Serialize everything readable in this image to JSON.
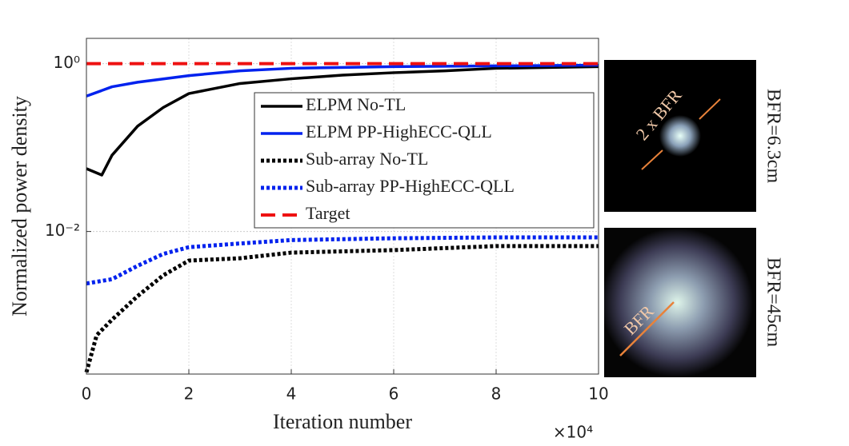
{
  "chart_data": {
    "type": "line",
    "y_label": "Normalized power density",
    "x_label": "Iteration number",
    "x_multiplier": "×10⁴",
    "xlim": [
      0,
      10
    ],
    "xticks": [
      0,
      2,
      4,
      6,
      8,
      10
    ],
    "ylim": [
      0.0002,
      2
    ],
    "yscale": "log",
    "yticks": [
      {
        "value": 0.01,
        "label": "10⁻²"
      },
      {
        "value": 1,
        "label": "10⁰"
      }
    ],
    "grid": true,
    "legend": "upper right",
    "series": [
      {
        "name": "ELPM No-TL",
        "color": "#000000",
        "style": "solid",
        "x": [
          0,
          0.3,
          0.5,
          1,
          1.5,
          2,
          3,
          4,
          5,
          6,
          7,
          8,
          10
        ],
        "values": [
          0.056,
          0.047,
          0.081,
          0.18,
          0.3,
          0.44,
          0.58,
          0.66,
          0.73,
          0.78,
          0.82,
          0.88,
          0.92
        ]
      },
      {
        "name": "ELPM PP-HighECC-QLL",
        "color": "#0022ee",
        "style": "solid",
        "x": [
          0,
          0.5,
          1,
          2,
          3,
          4,
          6,
          8,
          10
        ],
        "values": [
          0.41,
          0.53,
          0.6,
          0.72,
          0.82,
          0.88,
          0.92,
          0.94,
          0.96
        ]
      },
      {
        "name": "Sub-array No-TL",
        "color": "#000000",
        "style": "dotted",
        "x": [
          0,
          0.2,
          0.5,
          1,
          1.5,
          2,
          3,
          4,
          6,
          8,
          10
        ],
        "values": [
          0.00021,
          0.00058,
          0.00089,
          0.0017,
          0.003,
          0.0045,
          0.0048,
          0.0056,
          0.006,
          0.0067,
          0.0067
        ]
      },
      {
        "name": "Sub-array PP-HighECC-QLL",
        "color": "#0022ee",
        "style": "dotted",
        "x": [
          0,
          0.5,
          1,
          1.5,
          2,
          3,
          4,
          6,
          8,
          10
        ],
        "values": [
          0.0024,
          0.0027,
          0.0039,
          0.0054,
          0.0065,
          0.0072,
          0.0079,
          0.0083,
          0.0085,
          0.0085
        ]
      },
      {
        "name": "Target",
        "color": "#ee1111",
        "style": "dashed",
        "x": [
          0,
          10
        ],
        "values": [
          1,
          1
        ]
      }
    ]
  },
  "side_panels": [
    {
      "label": "BFR=6.3cm",
      "annotation": "2 x BFR"
    },
    {
      "label": "BFR=45cm",
      "annotation": "BFR"
    }
  ]
}
